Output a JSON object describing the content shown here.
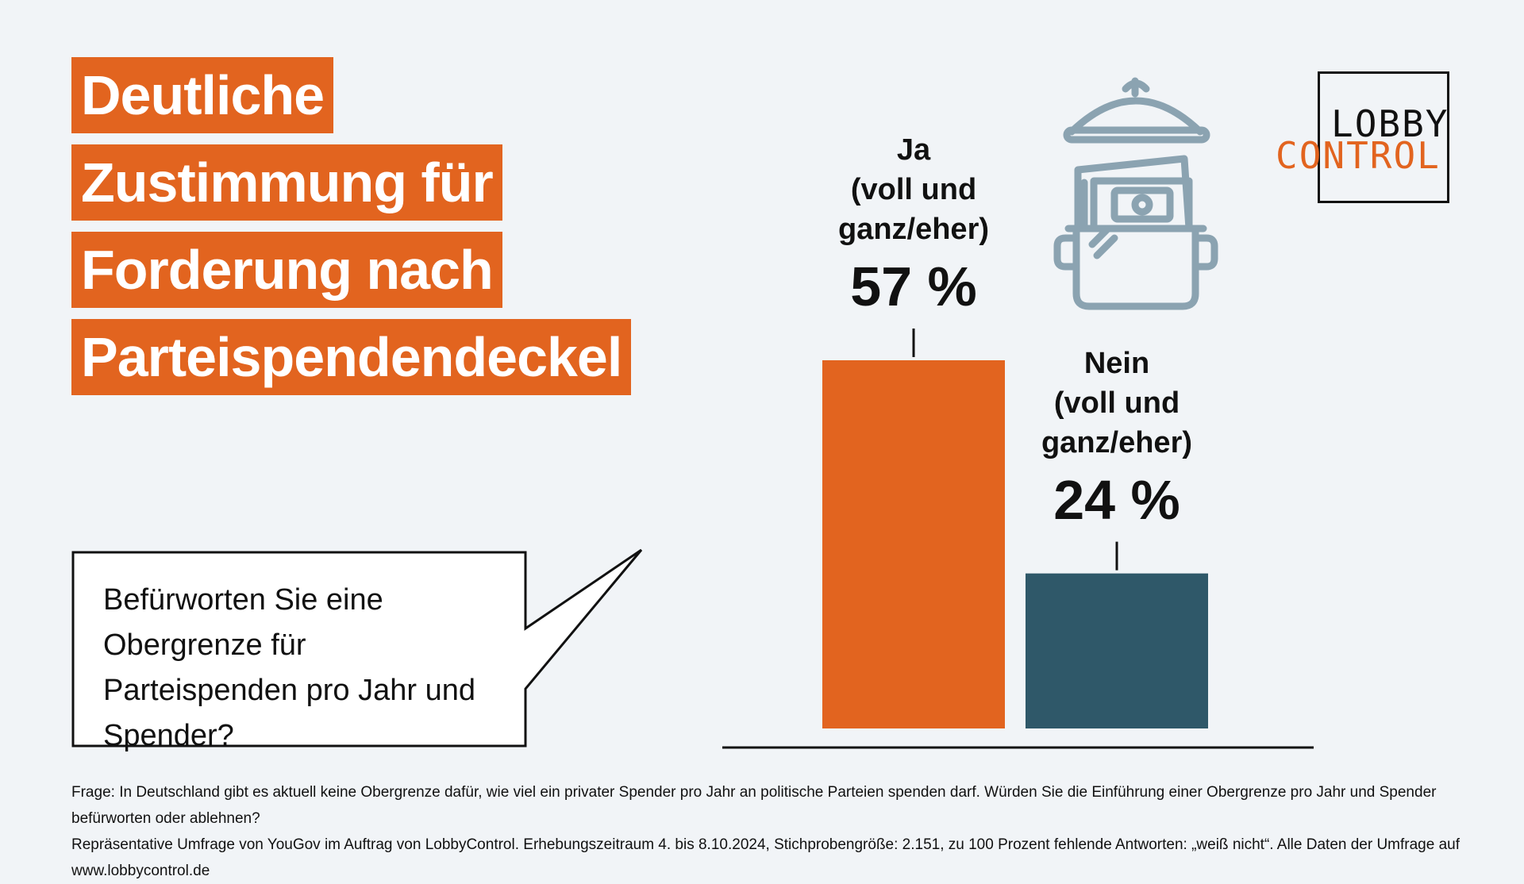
{
  "title_lines": [
    "Deutliche",
    "Zustimmung für",
    "Forderung nach",
    "Parteispendendeckel"
  ],
  "logo": {
    "line1": "LOBBY",
    "line2": "CONTROL"
  },
  "question": "Befürworten Sie eine Obergrenze für Parteispenden pro Jahr und Spender?",
  "footnote": {
    "line1": "Frage: In Deutschland gibt es aktuell keine Obergrenze dafür, wie viel ein privater Spender pro Jahr an politische Parteien spenden darf. Würden Sie die Einführung einer Obergrenze pro Jahr und Spender befürworten oder ablehnen?",
    "line2": "Repräsentative Umfrage von YouGov im Auftrag von LobbyControl. Erhebungszeitraum 4. bis 8.10.2024, Stichprobengröße: 2.151, zu 100 Prozent fehlende Antworten: „weiß nicht“. Alle Daten der Umfrage auf www.lobbycontrol.de"
  },
  "icon": "money-pot-icon",
  "colors": {
    "accent": "#e2641f",
    "secondary": "#2f5869",
    "icon": "#8ba3b1",
    "background": "#f1f4f7"
  },
  "chart_data": {
    "type": "bar",
    "categories": [
      "Ja\n(voll und\nganz/eher)",
      "Nein\n(voll und\nganz/eher)"
    ],
    "values": [
      57,
      24
    ],
    "value_labels": [
      "57 %",
      "24 %"
    ],
    "colors": [
      "#e2641f",
      "#2f5869"
    ],
    "title": "Deutliche Zustimmung für Forderung nach Parteispendendeckel",
    "xlabel": "",
    "ylabel": "",
    "ylim": [
      0,
      60
    ],
    "grid": false,
    "legend": "none"
  }
}
